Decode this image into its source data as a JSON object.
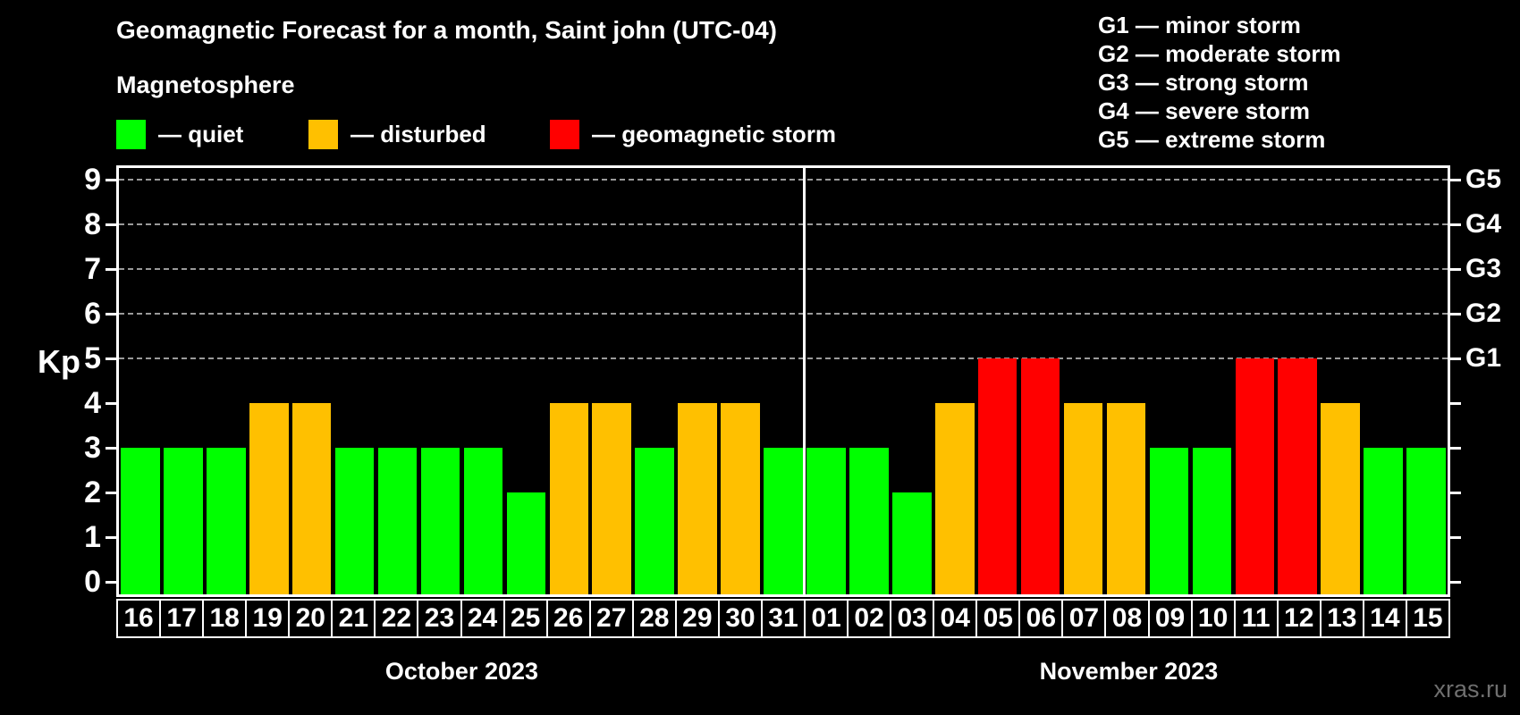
{
  "title": "Geomagnetic Forecast for a month, Saint john (UTC-04)",
  "subtitle": "Magnetosphere",
  "legend": {
    "items": [
      {
        "name": "quiet",
        "label": "— quiet",
        "color": "#00ff00"
      },
      {
        "name": "disturbed",
        "label": "— disturbed",
        "color": "#ffc000"
      },
      {
        "name": "storm",
        "label": "— geomagnetic storm",
        "color": "#ff0000"
      }
    ]
  },
  "g_legend": [
    "G1 — minor storm",
    "G2 — moderate storm",
    "G3 — strong storm",
    "G4 — severe storm",
    "G5 — extreme storm"
  ],
  "watermark": "xras.ru",
  "chart_data": {
    "type": "bar",
    "title": "Geomagnetic Forecast for a month, Saint john (UTC-04)",
    "subtitle": "Magnetosphere",
    "ylabel": "Kp",
    "yticks": [
      0,
      1,
      2,
      3,
      4,
      5,
      6,
      7,
      8,
      9
    ],
    "ylim": [
      -0.3,
      9.3
    ],
    "gridlines_at": [
      5,
      6,
      7,
      8,
      9
    ],
    "grid": "dashed horizontal at G-levels only",
    "legend_position": "top-left",
    "right_axis": [
      {
        "kp": 5,
        "label": "G1"
      },
      {
        "kp": 6,
        "label": "G2"
      },
      {
        "kp": 7,
        "label": "G3"
      },
      {
        "kp": 8,
        "label": "G4"
      },
      {
        "kp": 9,
        "label": "G5"
      }
    ],
    "colors": {
      "quiet": "#00ff00",
      "disturbed": "#ffc000",
      "storm": "#ff0000"
    },
    "months": [
      {
        "label": "October 2023",
        "days": [
          "16",
          "17",
          "18",
          "19",
          "20",
          "21",
          "22",
          "23",
          "24",
          "25",
          "26",
          "27",
          "28",
          "29",
          "30",
          "31"
        ],
        "values": [
          3,
          3,
          3,
          4,
          4,
          3,
          3,
          3,
          3,
          2,
          4,
          4,
          3,
          4,
          4,
          3
        ],
        "status": [
          "quiet",
          "quiet",
          "quiet",
          "disturbed",
          "disturbed",
          "quiet",
          "quiet",
          "quiet",
          "quiet",
          "quiet",
          "disturbed",
          "disturbed",
          "quiet",
          "disturbed",
          "disturbed",
          "quiet"
        ]
      },
      {
        "label": "November 2023",
        "days": [
          "01",
          "02",
          "03",
          "04",
          "05",
          "06",
          "07",
          "08",
          "09",
          "10",
          "11",
          "12",
          "13",
          "14",
          "15"
        ],
        "values": [
          3,
          3,
          2,
          4,
          5,
          5,
          4,
          4,
          3,
          3,
          5,
          5,
          4,
          3,
          3
        ],
        "status": [
          "quiet",
          "quiet",
          "quiet",
          "disturbed",
          "storm",
          "storm",
          "disturbed",
          "disturbed",
          "quiet",
          "quiet",
          "storm",
          "storm",
          "disturbed",
          "quiet",
          "quiet"
        ]
      }
    ]
  }
}
